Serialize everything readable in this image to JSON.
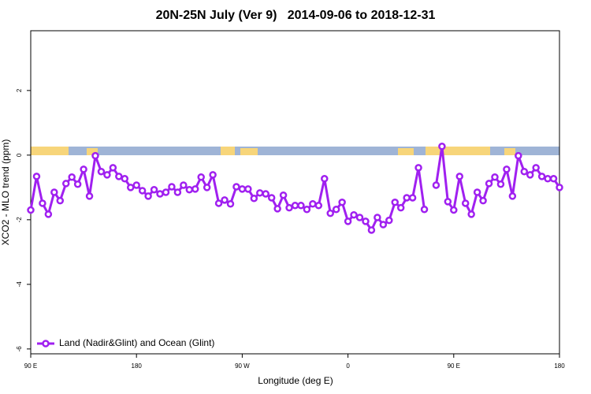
{
  "chart_data": {
    "type": "line",
    "title": "20N-25N July (Ver 9)   2014-09-06 to 2018-12-31",
    "xlabel": "Longitude (deg E)",
    "ylabel": "XCO2 - MLO trend (ppm)",
    "x": [
      90,
      95,
      100,
      105,
      110,
      115,
      120,
      125,
      130,
      135,
      140,
      145,
      150,
      155,
      160,
      165,
      170,
      175,
      180,
      185,
      190,
      195,
      200,
      205,
      210,
      215,
      220,
      225,
      230,
      235,
      240,
      245,
      250,
      255,
      260,
      265,
      270,
      275,
      280,
      285,
      290,
      295,
      300,
      305,
      310,
      315,
      320,
      325,
      330,
      335,
      340,
      345,
      350,
      355,
      360,
      365,
      370,
      375,
      380,
      385,
      390,
      395,
      400,
      405,
      410,
      415,
      420,
      425,
      430,
      435,
      440,
      445,
      450,
      455,
      460,
      465,
      470,
      475,
      480,
      485,
      490,
      495,
      500,
      505,
      510,
      515,
      520,
      525,
      530,
      535,
      540
    ],
    "series": [
      {
        "name": "Land (Nadir&Glint) and Ocean (Glint)",
        "color": "#a020f0",
        "values": [
          -1.7,
          -0.66,
          -1.49,
          -1.83,
          -1.15,
          -1.41,
          -0.88,
          -0.68,
          -0.9,
          -0.44,
          -1.27,
          -0.02,
          -0.51,
          -0.61,
          -0.39,
          -0.66,
          -0.73,
          -1.0,
          -0.93,
          -1.1,
          -1.27,
          -1.07,
          -1.2,
          -1.15,
          -0.98,
          -1.15,
          -0.93,
          -1.07,
          -1.05,
          -0.68,
          -1.0,
          -0.61,
          -1.49,
          -1.39,
          -1.51,
          -0.98,
          -1.05,
          -1.05,
          -1.34,
          -1.17,
          -1.2,
          -1.32,
          -1.66,
          -1.24,
          -1.63,
          -1.56,
          -1.56,
          -1.68,
          -1.51,
          -1.56,
          -0.73,
          -1.8,
          -1.68,
          -1.46,
          -2.05,
          -1.85,
          -1.93,
          -2.05,
          -2.32,
          -1.93,
          -2.15,
          -2.02,
          -1.46,
          -1.63,
          -1.32,
          -1.32,
          -0.39,
          -1.68,
          null,
          -0.93,
          0.27,
          -1.44,
          -1.7,
          -0.66,
          -1.49,
          -1.83,
          -1.15,
          -1.41,
          -0.88,
          -0.68,
          -0.9,
          -0.44,
          -1.27,
          -0.02,
          -0.51,
          -0.61,
          -0.39,
          -0.66,
          -0.73,
          -0.73,
          -1.0
        ]
      }
    ],
    "xlim": [
      90,
      540
    ],
    "xticks": [
      {
        "value": 90,
        "label": "90 E"
      },
      {
        "value": 180,
        "label": "180"
      },
      {
        "value": 270,
        "label": "90 W"
      },
      {
        "value": 360,
        "label": "0"
      },
      {
        "value": 450,
        "label": "90 E"
      },
      {
        "value": 540,
        "label": "180"
      }
    ],
    "ylim": [
      -6.15,
      3.85
    ],
    "yticks": [
      -6,
      -4,
      -2,
      0,
      2
    ],
    "legend": "bottom-left"
  }
}
